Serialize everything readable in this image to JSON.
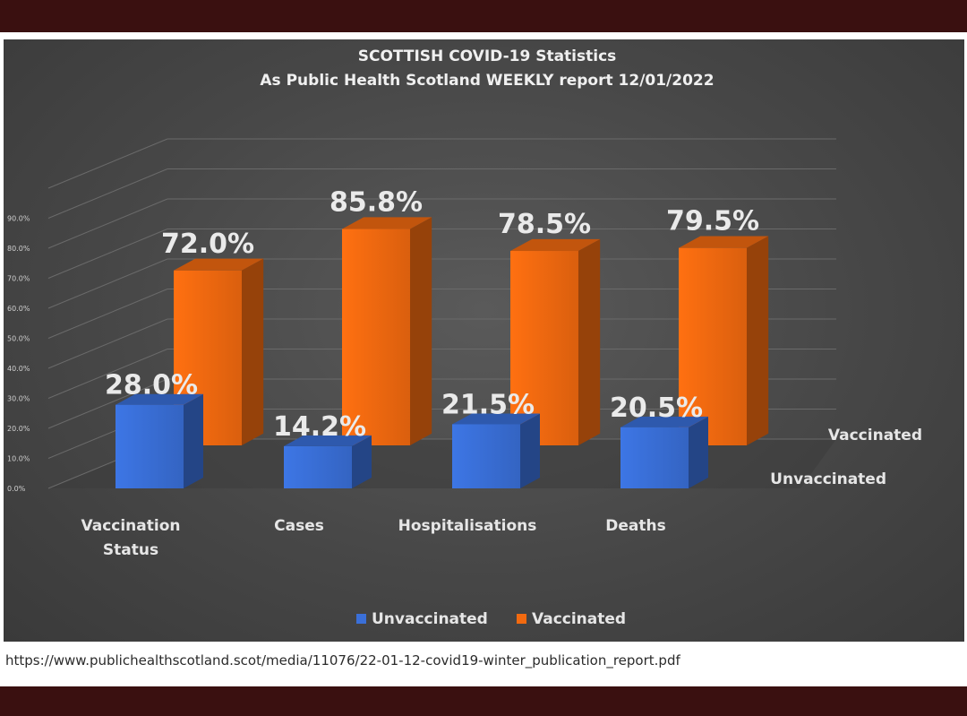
{
  "chart_data": {
    "type": "bar",
    "title": "SCOTTISH COVID-19 Statistics",
    "subtitle": "As Public Health Scotland WEEKLY report 12/01/2022",
    "categories": [
      "Vaccination Status",
      "Cases",
      "Hospitalisations",
      "Deaths"
    ],
    "series": [
      {
        "name": "Unvaccinated",
        "values": [
          28.0,
          14.2,
          21.5,
          20.5
        ],
        "labels": [
          "28.0%",
          "14.2%",
          "21.5%",
          "20.5%"
        ],
        "color": "#3a6fd8"
      },
      {
        "name": "Vaccinated",
        "values": [
          72.0,
          85.8,
          78.5,
          79.5
        ],
        "labels": [
          "72.0%",
          "85.8%",
          "78.5%",
          "79.5%"
        ],
        "color": "#f26a10"
      }
    ],
    "yticks": [
      "0.0%",
      "10.0%",
      "20.0%",
      "30.0%",
      "40.0%",
      "50.0%",
      "60.0%",
      "70.0%",
      "80.0%",
      "90.0%"
    ],
    "ylim": [
      0,
      90
    ],
    "three_d": true,
    "grid": true,
    "legend": "bottom",
    "depth_labels": [
      "Vaccinated",
      "Unvaccinated"
    ]
  },
  "source_url": "https://www.publichealthscotland.scot/media/11076/22-01-12-covid19-winter_publication_report.pdf"
}
